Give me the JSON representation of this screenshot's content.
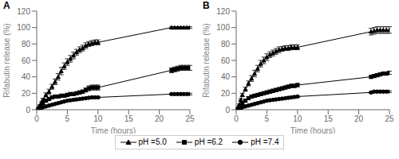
{
  "chart_data": [
    {
      "type": "line",
      "title": "A",
      "xlabel": "Time (hours)",
      "ylabel": "Rifabutin release (%)",
      "xlim": [
        0,
        25
      ],
      "ylim": [
        0,
        120
      ],
      "xticks": [
        0,
        5,
        10,
        15,
        20,
        25
      ],
      "yticks": [
        0,
        20,
        40,
        60,
        80,
        100,
        120
      ],
      "grid": false,
      "legend": "bottom",
      "series": [
        {
          "name": "pH =5.0",
          "color": "#000000",
          "marker": "triangle",
          "line_style": "solid",
          "x": [
            0.25,
            0.5,
            0.75,
            1.0,
            1.5,
            2.0,
            2.5,
            3.0,
            3.5,
            4.0,
            4.5,
            5.0,
            5.5,
            6.0,
            6.5,
            7.0,
            7.5,
            8.0,
            8.5,
            9.0,
            9.5,
            10.0,
            22.0,
            22.5,
            23.0,
            23.5,
            24.0,
            24.5,
            25.0
          ],
          "values": [
            2,
            5,
            8,
            12,
            18,
            22,
            28,
            34,
            40,
            47,
            53,
            58,
            62,
            66,
            70,
            73,
            75,
            78,
            80,
            81,
            82,
            82,
            100,
            100,
            100,
            100,
            100,
            100,
            100
          ],
          "error": [
            0.5,
            1,
            1.5,
            2,
            2.5,
            3,
            3,
            3.5,
            4,
            4.5,
            4,
            4,
            4,
            4,
            3.5,
            3.5,
            3.5,
            3.5,
            3,
            3,
            3,
            3,
            1,
            1,
            1,
            1,
            1,
            1,
            1
          ]
        },
        {
          "name": "pH =6.2",
          "color": "#000000",
          "marker": "square",
          "line_style": "solid",
          "x": [
            0.25,
            0.5,
            0.75,
            1.0,
            1.5,
            2.0,
            2.5,
            3.0,
            3.5,
            4.0,
            4.5,
            5.0,
            5.5,
            6.0,
            6.5,
            7.0,
            7.5,
            8.0,
            8.5,
            9.0,
            9.5,
            10.0,
            22.0,
            22.5,
            23.0,
            23.5,
            24.0,
            24.5,
            25.0
          ],
          "values": [
            1,
            3,
            5,
            8,
            11,
            13,
            15,
            16,
            16,
            17,
            17,
            18,
            19,
            19,
            20,
            21,
            22,
            24,
            26,
            27,
            27,
            27,
            48,
            49,
            50,
            51,
            51,
            51,
            51
          ],
          "error": [
            0.5,
            0.8,
            1,
            1.5,
            2,
            2,
            2,
            2,
            2,
            2,
            2,
            2,
            2,
            2,
            2,
            2,
            2,
            2.5,
            3,
            3,
            3,
            3,
            3,
            3,
            3,
            3,
            3,
            3,
            3
          ]
        },
        {
          "name": "pH =7.4",
          "color": "#000000",
          "marker": "circle",
          "line_style": "solid",
          "x": [
            0.25,
            0.5,
            0.75,
            1.0,
            1.5,
            2.0,
            2.5,
            3.0,
            3.5,
            4.0,
            4.5,
            5.0,
            5.5,
            6.0,
            6.5,
            7.0,
            7.5,
            8.0,
            8.5,
            9.0,
            9.5,
            10.0,
            22.0,
            22.5,
            23.0,
            23.5,
            24.0,
            24.5,
            25.0
          ],
          "values": [
            0.5,
            1,
            2,
            3,
            4,
            5,
            6,
            7,
            8,
            9,
            10,
            11,
            11.5,
            12,
            12.5,
            13,
            13.5,
            14,
            14.5,
            15,
            15,
            15,
            19,
            19,
            19,
            19,
            19,
            19,
            19
          ],
          "error": [
            0.3,
            0.5,
            0.7,
            1,
            1,
            1,
            1,
            1,
            1,
            1,
            1,
            1,
            1,
            1,
            1,
            1,
            1,
            1,
            1,
            1,
            1,
            1,
            1,
            1,
            1,
            1,
            1,
            1,
            1
          ]
        }
      ]
    },
    {
      "type": "line",
      "title": "B",
      "xlabel": "Time (hours)",
      "ylabel": "Rifabutin release (%)",
      "xlim": [
        0,
        25
      ],
      "ylim": [
        0,
        120
      ],
      "xticks": [
        0,
        5,
        10,
        15,
        20,
        25
      ],
      "yticks": [
        0,
        20,
        40,
        60,
        80,
        100,
        120
      ],
      "grid": false,
      "legend": "bottom",
      "series": [
        {
          "name": "pH =5.0",
          "color": "#000000",
          "marker": "triangle",
          "line_style": "solid",
          "x": [
            0.25,
            0.5,
            0.75,
            1.0,
            1.5,
            2.0,
            2.5,
            3.0,
            3.5,
            4.0,
            4.5,
            5.0,
            5.5,
            6.0,
            6.5,
            7.0,
            7.5,
            8.0,
            8.5,
            9.0,
            9.5,
            10.0,
            22.0,
            22.5,
            23.0,
            23.5,
            24.0,
            24.5,
            25.0
          ],
          "values": [
            2,
            6,
            12,
            18,
            25,
            32,
            38,
            44,
            50,
            56,
            60,
            64,
            67,
            69,
            71,
            73,
            74,
            75,
            75,
            76,
            76,
            76,
            95,
            96,
            97,
            97,
            97,
            97,
            97
          ],
          "error": [
            0.5,
            1,
            1.5,
            2,
            2.5,
            3,
            3.5,
            4,
            4,
            4,
            4,
            4,
            3.5,
            3.5,
            3.5,
            3.5,
            3,
            3,
            3,
            3,
            3,
            3,
            4,
            4,
            4,
            4,
            4,
            4,
            4
          ]
        },
        {
          "name": "pH =6.2",
          "color": "#000000",
          "marker": "square",
          "line_style": "solid",
          "x": [
            0.25,
            0.5,
            0.75,
            1.0,
            1.5,
            2.0,
            2.5,
            3.0,
            3.5,
            4.0,
            4.5,
            5.0,
            5.5,
            6.0,
            6.5,
            7.0,
            7.5,
            8.0,
            8.5,
            9.0,
            9.5,
            10.0,
            22.0,
            22.5,
            23.0,
            23.5,
            24.0,
            24.5,
            25.0
          ],
          "values": [
            1,
            3,
            5,
            8,
            11,
            14,
            16,
            17,
            18,
            19,
            20,
            21,
            22,
            23,
            24,
            25,
            26,
            27,
            28,
            29,
            29,
            30,
            40,
            41,
            42,
            43,
            44,
            44,
            45
          ],
          "error": [
            0.5,
            0.8,
            1,
            1.5,
            2,
            2,
            2,
            2,
            2,
            2,
            2,
            2,
            2,
            2,
            2,
            2,
            2,
            2,
            2,
            2,
            2,
            2,
            2,
            2,
            2,
            2,
            2,
            2,
            2
          ]
        },
        {
          "name": "pH =7.4",
          "color": "#000000",
          "marker": "circle",
          "line_style": "solid",
          "x": [
            0.25,
            0.5,
            0.75,
            1.0,
            1.5,
            2.0,
            2.5,
            3.0,
            3.5,
            4.0,
            4.5,
            5.0,
            5.5,
            6.0,
            6.5,
            7.0,
            7.5,
            8.0,
            8.5,
            9.0,
            9.5,
            10.0,
            22.0,
            22.5,
            23.0,
            23.5,
            24.0,
            24.5,
            25.0
          ],
          "values": [
            0.5,
            1,
            2,
            3,
            4,
            5,
            6,
            7,
            8,
            9,
            10,
            11,
            11.5,
            12,
            12.5,
            13,
            13.5,
            14,
            14.5,
            15,
            15.5,
            16,
            21,
            22,
            22,
            22,
            22,
            22,
            22
          ],
          "error": [
            0.3,
            0.5,
            0.7,
            1,
            1,
            1,
            1,
            1,
            1,
            1,
            1,
            1,
            1,
            1,
            1,
            1,
            1,
            1,
            1,
            1,
            1,
            1,
            1,
            1,
            1,
            1,
            1,
            1,
            1
          ]
        }
      ]
    }
  ]
}
